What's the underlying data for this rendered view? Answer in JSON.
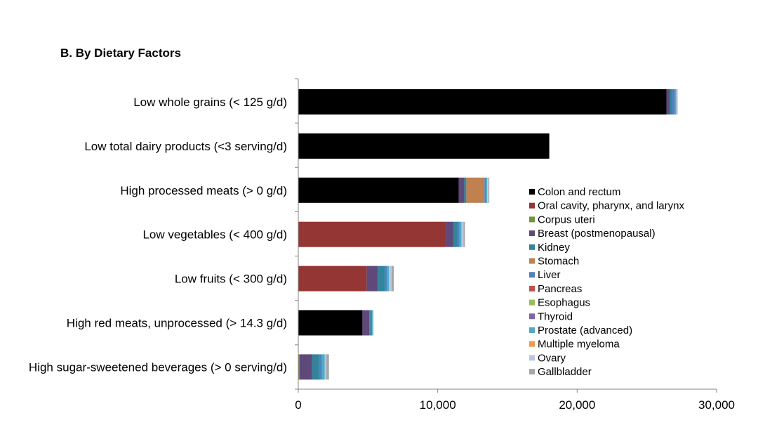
{
  "chart_data": {
    "type": "bar",
    "orientation": "horizontal",
    "stacked": true,
    "title": "B. By Dietary Factors",
    "xlabel": "",
    "ylabel": "",
    "xlim": [
      0,
      30000
    ],
    "x_ticks": [
      0,
      10000,
      20000,
      30000
    ],
    "x_tick_labels": [
      "0",
      "10,000",
      "20,000",
      "30,000"
    ],
    "grid": false,
    "legend_position": "right",
    "categories": [
      "Low whole grains (< 125 g/d)",
      "Low total dairy products (<3 serving/d)",
      "High processed meats (> 0 g/d)",
      "Low vegetables (< 400 g/d)",
      "Low fruits (< 300 g/d)",
      "High red meats, unprocessed (> 14.3 g/d)",
      "High sugar-sweetened beverages (> 0 serving/d)"
    ],
    "series": [
      {
        "name": "Colon and rectum",
        "color": "#000000",
        "values": [
          26400,
          18000,
          11500,
          0,
          0,
          4600,
          0
        ]
      },
      {
        "name": "Oral cavity, pharynx, and larynx",
        "color": "#943634",
        "values": [
          0,
          0,
          0,
          10600,
          4900,
          0,
          0
        ]
      },
      {
        "name": "Corpus uteri",
        "color": "#76923c",
        "values": [
          0,
          0,
          0,
          0,
          0,
          0,
          100
        ]
      },
      {
        "name": "Breast (postmenopausal)",
        "color": "#5f497a",
        "values": [
          250,
          0,
          400,
          500,
          800,
          500,
          900
        ]
      },
      {
        "name": "Kidney",
        "color": "#31849b",
        "values": [
          150,
          0,
          150,
          300,
          500,
          100,
          500
        ]
      },
      {
        "name": "Stomach",
        "color": "#c0804f",
        "values": [
          0,
          0,
          1300,
          0,
          0,
          0,
          0
        ]
      },
      {
        "name": "Liver",
        "color": "#4f81bd",
        "values": [
          200,
          0,
          100,
          150,
          150,
          100,
          200
        ]
      },
      {
        "name": "Pancreas",
        "color": "#c0504d",
        "values": [
          0,
          0,
          0,
          0,
          0,
          0,
          0
        ]
      },
      {
        "name": "Esophagus",
        "color": "#9bbb59",
        "values": [
          0,
          0,
          0,
          0,
          0,
          0,
          0
        ]
      },
      {
        "name": "Thyroid",
        "color": "#8064a2",
        "values": [
          0,
          0,
          0,
          0,
          0,
          0,
          0
        ]
      },
      {
        "name": "Prostate (advanced)",
        "color": "#4bacc6",
        "values": [
          100,
          0,
          100,
          150,
          150,
          50,
          200
        ]
      },
      {
        "name": "Multiple myeloma",
        "color": "#f79646",
        "values": [
          0,
          0,
          0,
          0,
          0,
          0,
          0
        ]
      },
      {
        "name": "Ovary",
        "color": "#b8c6e2",
        "values": [
          50,
          0,
          100,
          150,
          200,
          50,
          100
        ]
      },
      {
        "name": "Gallbladder",
        "color": "#a6a6a6",
        "values": [
          50,
          0,
          50,
          100,
          150,
          0,
          200
        ]
      }
    ]
  }
}
